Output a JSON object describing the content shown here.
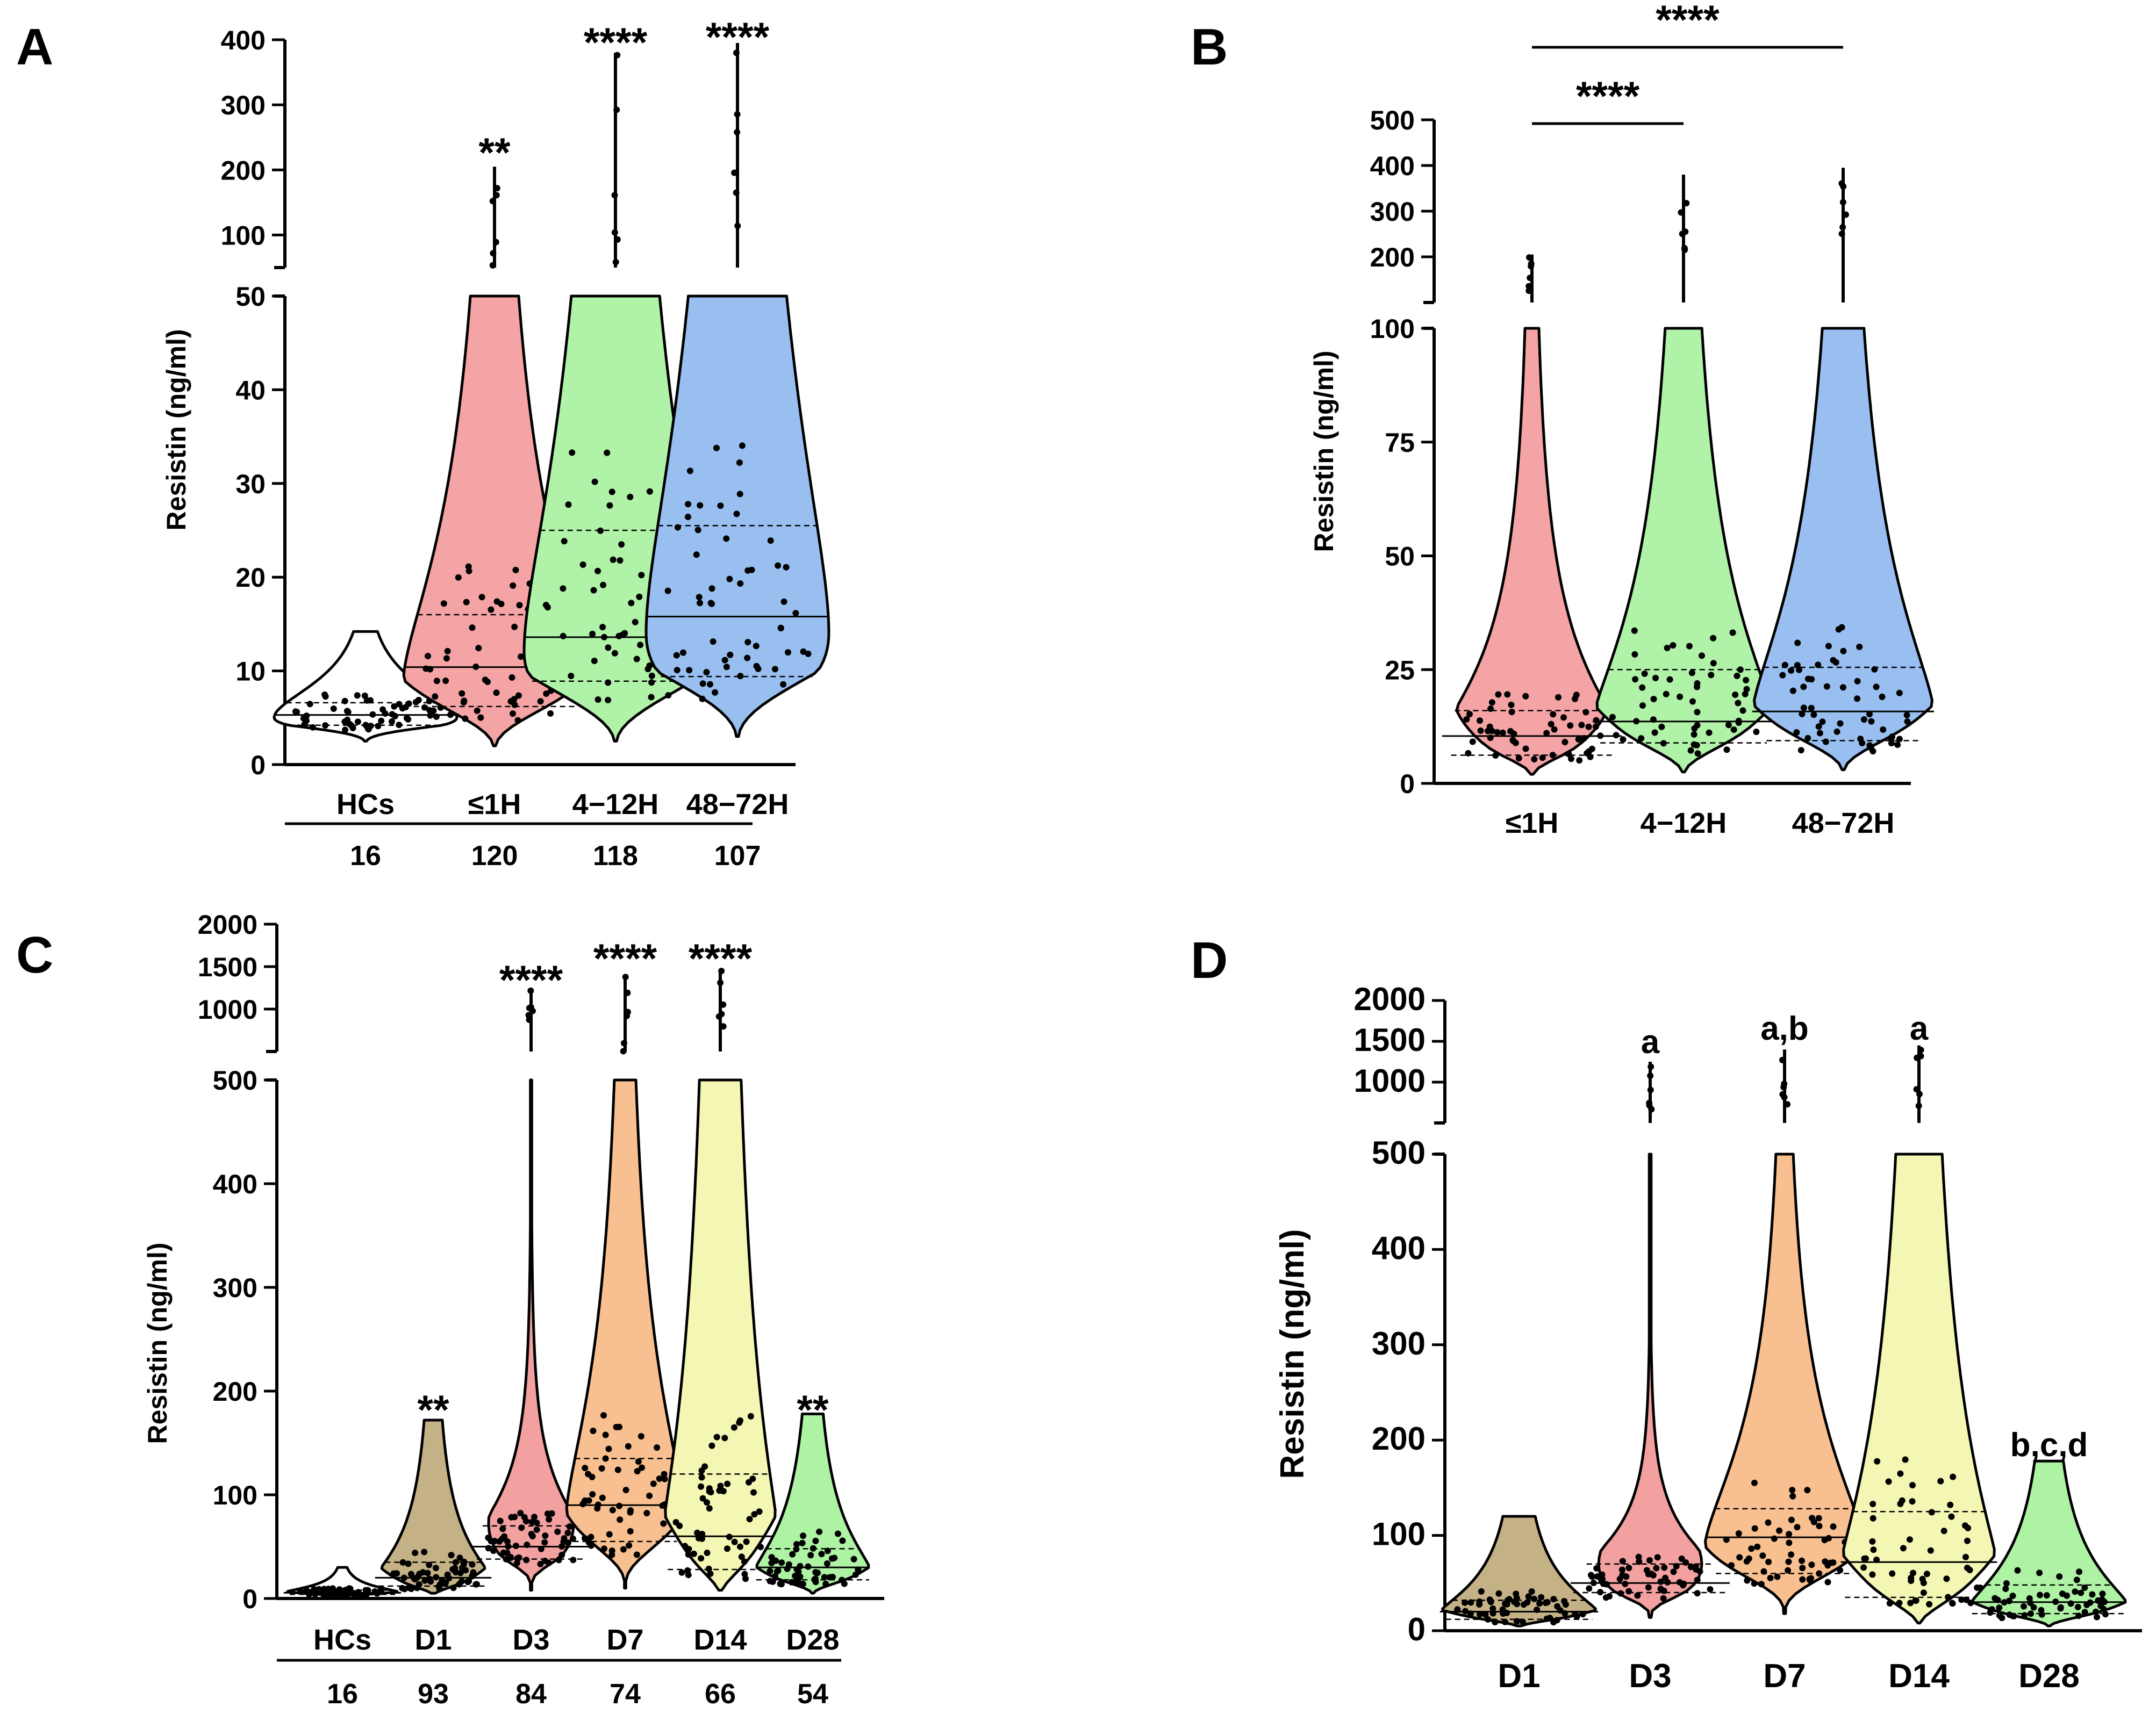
{
  "colors": {
    "HCs": "#ffffff",
    "1H": "#f4a4a4",
    "4_12H": "#b0f2a8",
    "48_72H": "#98bff0",
    "D1": "#c4b286",
    "D3": "#f2a0a0",
    "D7": "#f8c090",
    "D14": "#f4f6b4",
    "D28": "#aef2a4",
    "outline": "#000000"
  },
  "chart_data": [
    {
      "panel": "A",
      "type": "violin",
      "ylabel": "Resistin (ng/ml)",
      "categories": [
        "HCs",
        "≤1H",
        "4−12H",
        "48−72H"
      ],
      "n": [
        "16",
        "120",
        "118",
        "107"
      ],
      "y_segments": [
        {
          "range": [
            0,
            50
          ],
          "ticks": [
            "0",
            "10",
            "20",
            "30",
            "40",
            "50"
          ]
        },
        {
          "range": [
            50,
            400
          ],
          "ticks": [
            "100",
            "200",
            "300",
            "400"
          ]
        }
      ],
      "series": [
        {
          "name": "HCs",
          "color_key": "HCs",
          "min": 2.5,
          "max": 14.2,
          "median": 5.3,
          "q1": 4.2,
          "q3": 6.6,
          "kde_peak": 5.0
        },
        {
          "name": "≤1H",
          "color_key": "1H",
          "min": 2.0,
          "max": 205,
          "median": 10.4,
          "q1": 6.2,
          "q3": 16.0,
          "kde_peak": 8.5
        },
        {
          "name": "4−12H",
          "color_key": "4_12H",
          "min": 2.5,
          "max": 380,
          "median": 13.6,
          "q1": 8.9,
          "q3": 25.0,
          "kde_peak": 12.0
        },
        {
          "name": "48−72H",
          "color_key": "48_72H",
          "min": 3.0,
          "max": 395,
          "median": 15.8,
          "q1": 9.4,
          "q3": 25.5,
          "kde_peak": 14.0
        }
      ],
      "annotations": [
        {
          "category": "≤1H",
          "text": "**"
        },
        {
          "category": "4−12H",
          "text": "****"
        },
        {
          "category": "48−72H",
          "text": "****"
        }
      ]
    },
    {
      "panel": "B",
      "type": "violin",
      "ylabel": "Resistin (ng/ml)",
      "categories": [
        "≤1H",
        "4−12H",
        "48−72H"
      ],
      "y_segments": [
        {
          "range": [
            0,
            100
          ],
          "ticks": [
            "0",
            "25",
            "50",
            "75",
            "100"
          ]
        },
        {
          "range": [
            100,
            500
          ],
          "ticks": [
            "200",
            "300",
            "400",
            "500"
          ]
        }
      ],
      "series": [
        {
          "name": "≤1H",
          "color_key": "1H",
          "min": 2.0,
          "max": 205,
          "median": 10.4,
          "q1": 6.2,
          "q3": 16.0,
          "kde_peak": 8.5
        },
        {
          "name": "4−12H",
          "color_key": "4_12H",
          "min": 2.5,
          "max": 380,
          "median": 13.6,
          "q1": 8.9,
          "q3": 25.0,
          "kde_peak": 12.0
        },
        {
          "name": "48−72H",
          "color_key": "48_72H",
          "min": 3.0,
          "max": 395,
          "median": 15.8,
          "q1": 9.4,
          "q3": 25.5,
          "kde_peak": 14.0
        }
      ],
      "brackets": [
        {
          "from": "≤1H",
          "to": "4−12H",
          "text": "****"
        },
        {
          "from": "≤1H",
          "to": "48−72H",
          "text": "****"
        }
      ]
    },
    {
      "panel": "C",
      "type": "violin",
      "ylabel": "Resistin (ng/ml)",
      "categories": [
        "HCs",
        "D1",
        "D3",
        "D7",
        "D14",
        "D28"
      ],
      "n": [
        "16",
        "93",
        "84",
        "74",
        "66",
        "54"
      ],
      "y_segments": [
        {
          "range": [
            0,
            500
          ],
          "ticks": [
            "0",
            "100",
            "200",
            "300",
            "400",
            "500"
          ]
        },
        {
          "range": [
            500,
            2000
          ],
          "ticks": [
            "1000",
            "1500",
            "2000"
          ]
        }
      ],
      "series": [
        {
          "name": "HCs",
          "color_key": "HCs",
          "min": 2.5,
          "max": 30,
          "median": 5.5,
          "q1": 4.0,
          "q3": 8.0,
          "kde_peak": 5.0
        },
        {
          "name": "D1",
          "color_key": "D1",
          "min": 5,
          "max": 172,
          "median": 20,
          "q1": 12,
          "q3": 35,
          "kde_peak": 16
        },
        {
          "name": "D3",
          "color_key": "D3",
          "min": 8,
          "max": 1250,
          "median": 50,
          "q1": 38,
          "q3": 70,
          "kde_peak": 45
        },
        {
          "name": "D7",
          "color_key": "D7",
          "min": 10,
          "max": 1400,
          "median": 90,
          "q1": 55,
          "q3": 135,
          "kde_peak": 75
        },
        {
          "name": "D14",
          "color_key": "D14",
          "min": 8,
          "max": 1450,
          "median": 60,
          "q1": 28,
          "q3": 120,
          "kde_peak": 45
        },
        {
          "name": "D28",
          "color_key": "D28",
          "min": 5,
          "max": 178,
          "median": 30,
          "q1": 18,
          "q3": 48,
          "kde_peak": 22
        }
      ],
      "annotations": [
        {
          "category": "D1",
          "text": "**"
        },
        {
          "category": "D3",
          "text": "****"
        },
        {
          "category": "D7",
          "text": "****"
        },
        {
          "category": "D14",
          "text": "****"
        },
        {
          "category": "D28",
          "text": "**"
        }
      ]
    },
    {
      "panel": "D",
      "type": "violin",
      "ylabel": "Resistin (ng/ml)",
      "categories": [
        "D1",
        "D3",
        "D7",
        "D14",
        "D28"
      ],
      "y_segments": [
        {
          "range": [
            0,
            500
          ],
          "ticks": [
            "0",
            "100",
            "200",
            "300",
            "400",
            "500"
          ]
        },
        {
          "range": [
            500,
            2000
          ],
          "ticks": [
            "1000",
            "1500",
            "2000"
          ]
        }
      ],
      "series": [
        {
          "name": "D1",
          "color_key": "D1",
          "min": 5,
          "max": 120,
          "median": 20,
          "q1": 12,
          "q3": 32,
          "kde_peak": 16
        },
        {
          "name": "D3",
          "color_key": "D3",
          "min": 14,
          "max": 1250,
          "median": 50,
          "q1": 40,
          "q3": 70,
          "kde_peak": 45
        },
        {
          "name": "D7",
          "color_key": "D7",
          "min": 18,
          "max": 1400,
          "median": 98,
          "q1": 60,
          "q3": 128,
          "kde_peak": 80
        },
        {
          "name": "D14",
          "color_key": "D14",
          "min": 8,
          "max": 1450,
          "median": 72,
          "q1": 35,
          "q3": 125,
          "kde_peak": 50
        },
        {
          "name": "D28",
          "color_key": "D28",
          "min": 5,
          "max": 178,
          "median": 30,
          "q1": 18,
          "q3": 48,
          "kde_peak": 22
        }
      ],
      "annotations": [
        {
          "category": "D3",
          "text": "a"
        },
        {
          "category": "D7",
          "text": "a,b"
        },
        {
          "category": "D14",
          "text": "a"
        },
        {
          "category": "D28",
          "text": "b,c,d"
        }
      ]
    }
  ]
}
